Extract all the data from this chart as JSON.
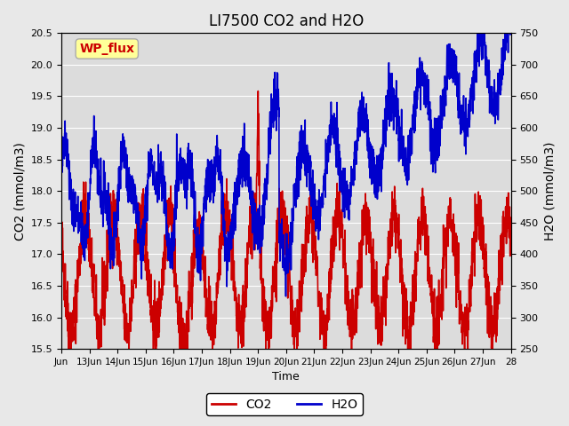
{
  "title": "LI7500 CO2 and H2O",
  "xlabel": "Time",
  "ylabel_left": "CO2 (mmol/m3)",
  "ylabel_right": "H2O (mmol/m3)",
  "co2_ylim": [
    15.5,
    20.5
  ],
  "h2o_ylim": [
    250,
    750
  ],
  "co2_yticks": [
    15.5,
    16.0,
    16.5,
    17.0,
    17.5,
    18.0,
    18.5,
    19.0,
    19.5,
    20.0,
    20.5
  ],
  "h2o_yticks": [
    250,
    300,
    350,
    400,
    450,
    500,
    550,
    600,
    650,
    700,
    750
  ],
  "xtick_labels": [
    "Jun",
    "13Jun",
    "14Jun",
    "15Jun",
    "16Jun",
    "17Jun",
    "18Jun",
    "19Jun",
    "20Jun",
    "21Jun",
    "22Jun",
    "23Jun",
    "24Jun",
    "25Jun",
    "26Jun",
    "27Jun",
    "28"
  ],
  "co2_color": "#cc0000",
  "h2o_color": "#0000cc",
  "bg_color": "#e8e8e8",
  "plot_bg_color": "#dcdcdc",
  "label_box_color": "#ffff99",
  "label_box_text": "WP_flux",
  "label_box_text_color": "#cc0000",
  "grid_color": "#ffffff",
  "line_width": 1.2
}
